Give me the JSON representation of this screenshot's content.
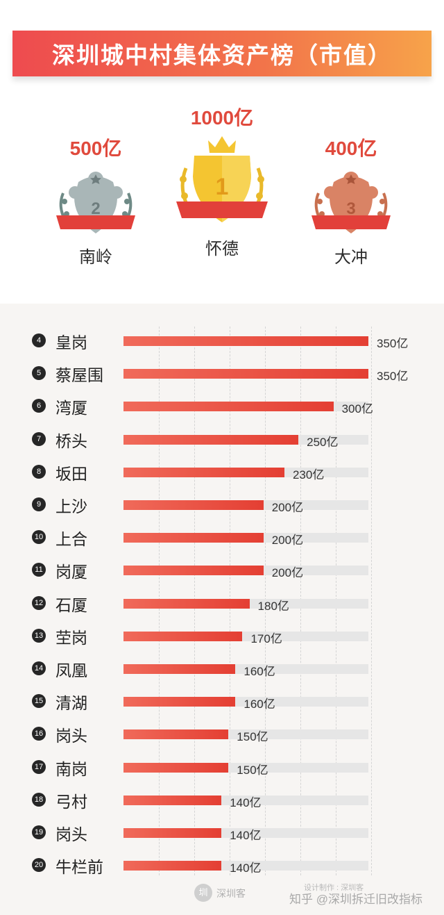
{
  "title": "深圳城中村集体资产榜（市值）",
  "podium": [
    {
      "rank": "2",
      "name": "南岭",
      "value_label": "500亿",
      "value": 500,
      "color": "#a9b6b7"
    },
    {
      "rank": "1",
      "name": "怀德",
      "value_label": "1000亿",
      "value": 1000,
      "color": "#f4c531"
    },
    {
      "rank": "3",
      "name": "大冲",
      "value_label": "400亿",
      "value": 400,
      "color": "#d98365"
    }
  ],
  "chart_data": {
    "type": "bar",
    "orientation": "horizontal",
    "title": "深圳城中村集体资产榜（市值）",
    "unit": "亿",
    "xlim": [
      0,
      350
    ],
    "grid": true,
    "ranks": [
      "4",
      "5",
      "6",
      "7",
      "8",
      "9",
      "10",
      "11",
      "12",
      "13",
      "14",
      "15",
      "16",
      "17",
      "18",
      "19",
      "20"
    ],
    "categories": [
      "皇岗",
      "蔡屋围",
      "湾厦",
      "桥头",
      "坂田",
      "上沙",
      "上合",
      "岗厦",
      "石厦",
      "茔岗",
      "凤凰",
      "清湖",
      "岗头",
      "南岗",
      "弓村",
      "岗头",
      "牛栏前"
    ],
    "values": [
      350,
      350,
      300,
      250,
      230,
      200,
      200,
      200,
      180,
      170,
      160,
      160,
      150,
      150,
      140,
      140,
      140
    ],
    "labels": [
      "350亿",
      "350亿",
      "300亿",
      "250亿",
      "230亿",
      "200亿",
      "200亿",
      "200亿",
      "180亿",
      "170亿",
      "160亿",
      "160亿",
      "150亿",
      "150亿",
      "140亿",
      "140亿",
      "140亿"
    ],
    "bar_color": "#e8483b",
    "track_color": "#e6e6e6"
  },
  "footer": {
    "logo_char": "圳",
    "brand": "深圳客",
    "credit": "设计制作 : 深圳客",
    "watermark": "知乎 @深圳拆迁旧改指标"
  }
}
